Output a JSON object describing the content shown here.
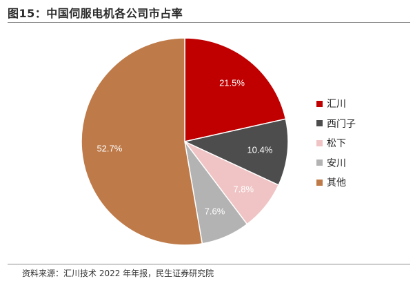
{
  "header": {
    "title": "图15：中国伺服电机各公司市占率"
  },
  "footer": {
    "source": "资料来源：汇川技术 2022 年年报，民生证券研究院"
  },
  "chart_data": {
    "type": "pie",
    "title": "图15：中国伺服电机各公司市占率",
    "slices": [
      {
        "name": "汇川",
        "value": 21.5,
        "label": "21.5%",
        "color": "#c00000",
        "label_color": "#ffffff"
      },
      {
        "name": "西门子",
        "value": 10.4,
        "label": "10.4%",
        "color": "#4d4d4d",
        "label_color": "#ffffff"
      },
      {
        "name": "松下",
        "value": 7.8,
        "label": "7.8%",
        "color": "#f0c4c4",
        "label_color": "#ffffff"
      },
      {
        "name": "安川",
        "value": 7.6,
        "label": "7.6%",
        "color": "#b3b3b3",
        "label_color": "#ffffff"
      },
      {
        "name": "其他",
        "value": 52.7,
        "label": "52.7%",
        "color": "#be7a48",
        "label_color": "#ffffff"
      }
    ],
    "start_angle": "12 o'clock",
    "direction": "clockwise",
    "legend_position": "right"
  }
}
